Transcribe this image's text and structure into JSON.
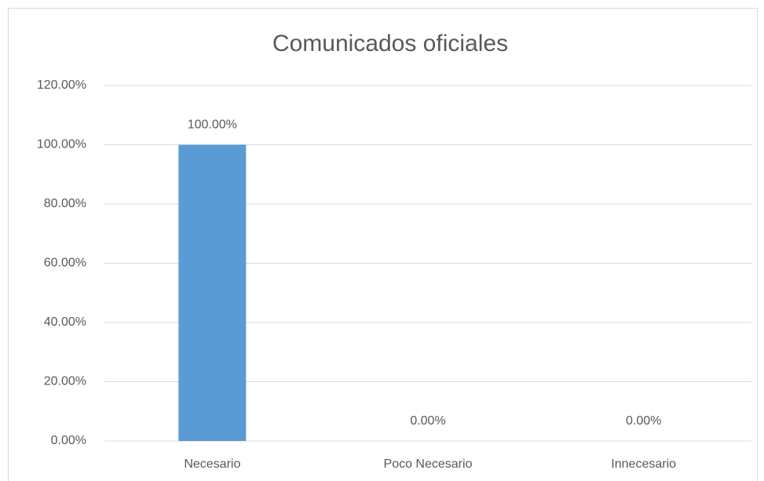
{
  "chart_data": {
    "type": "bar",
    "title": "Comunicados oficiales",
    "categories": [
      "Necesario",
      "Poco Necesario",
      "Innecesario"
    ],
    "values": [
      100,
      0,
      0
    ],
    "value_labels": [
      "100.00%",
      "0.00%",
      "0.00%"
    ],
    "color": "#5b9bd5",
    "ylim": [
      0,
      120
    ],
    "yticks": [
      {
        "value": 0,
        "label": "0.00%"
      },
      {
        "value": 20,
        "label": "20.00%"
      },
      {
        "value": 40,
        "label": "40.00%"
      },
      {
        "value": 60,
        "label": "60.00%"
      },
      {
        "value": 80,
        "label": "80.00%"
      },
      {
        "value": 100,
        "label": "100.00%"
      },
      {
        "value": 120,
        "label": "120.00%"
      }
    ],
    "grid": true
  }
}
